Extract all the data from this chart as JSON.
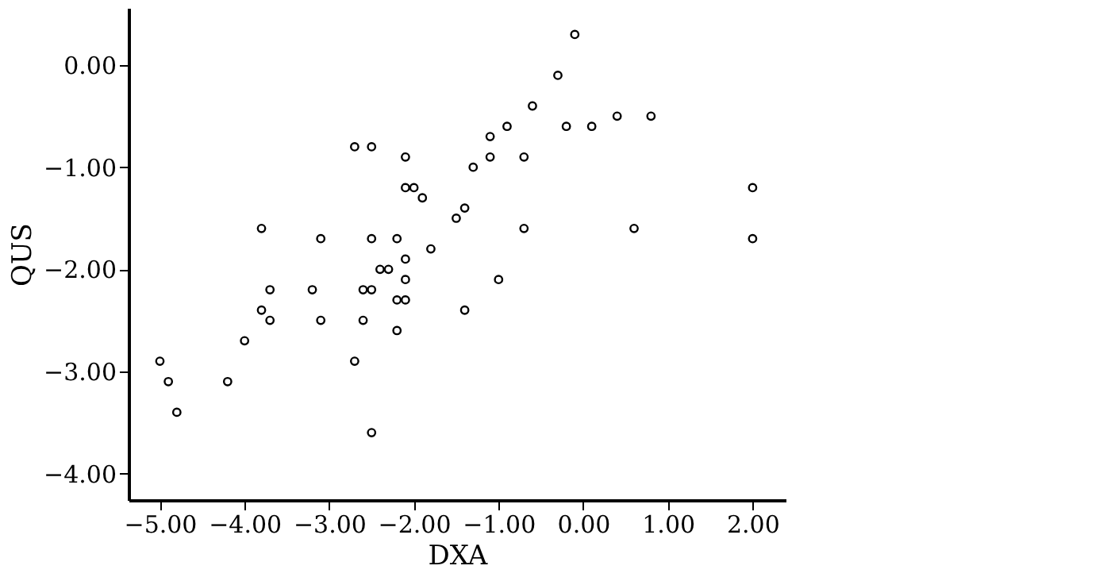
{
  "chart_data": {
    "type": "scatter",
    "xlabel": "DXA",
    "ylabel": "QUS",
    "marker": "circle",
    "grid": false,
    "xlim": [
      -5.37,
      2.39
    ],
    "ylim": [
      -4.26,
      0.56
    ],
    "xticks": [
      {
        "value": -5,
        "label": "−5.00"
      },
      {
        "value": -4,
        "label": "−4.00"
      },
      {
        "value": -3,
        "label": "−3.00"
      },
      {
        "value": -2,
        "label": "−2.00"
      },
      {
        "value": -1,
        "label": "−1.00"
      },
      {
        "value": 0,
        "label": "0.00"
      },
      {
        "value": 1,
        "label": "1.00"
      },
      {
        "value": 2,
        "label": "2.00"
      }
    ],
    "yticks": [
      {
        "value": -4,
        "label": "−4.00"
      },
      {
        "value": -3,
        "label": "−3.00"
      },
      {
        "value": -2,
        "label": "−2.00"
      },
      {
        "value": -1,
        "label": "−1.00"
      },
      {
        "value": 0,
        "label": "0.00"
      }
    ],
    "series": [
      {
        "color": "#000000",
        "x": [
          -5.0,
          -4.9,
          -4.8,
          -4.2,
          -4.0,
          -3.8,
          -3.8,
          -3.7,
          -3.7,
          -3.2,
          -3.1,
          -3.1,
          -2.7,
          -2.7,
          -2.6,
          -2.6,
          -2.5,
          -2.5,
          -2.5,
          -2.5,
          -2.4,
          -2.3,
          -2.2,
          -2.2,
          -2.2,
          -2.1,
          -2.1,
          -2.1,
          -2.1,
          -2.1,
          -2.0,
          -1.9,
          -1.8,
          -1.5,
          -1.4,
          -1.4,
          -1.3,
          -1.1,
          -1.1,
          -1.0,
          -0.9,
          -0.7,
          -0.7,
          -0.6,
          -0.3,
          -0.2,
          -0.1,
          0.1,
          0.4,
          0.6,
          0.8,
          2.0,
          2.0
        ],
        "values": [
          -2.9,
          -3.1,
          -3.4,
          -3.1,
          -2.7,
          -1.6,
          -2.4,
          -2.2,
          -2.5,
          -2.2,
          -1.7,
          -2.5,
          -0.8,
          -2.9,
          -2.2,
          -2.5,
          -0.8,
          -1.7,
          -2.2,
          -3.6,
          -2.0,
          -2.0,
          -1.7,
          -2.3,
          -2.6,
          -0.9,
          -1.2,
          -1.9,
          -2.1,
          -2.3,
          -1.2,
          -1.3,
          -1.8,
          -1.5,
          -1.4,
          -2.4,
          -1.0,
          -0.9,
          -0.7,
          -2.1,
          -0.6,
          -0.9,
          -1.6,
          -0.4,
          -0.1,
          -0.6,
          0.3,
          -0.6,
          -0.5,
          -1.6,
          -0.5,
          -1.2,
          -1.7
        ]
      }
    ]
  }
}
